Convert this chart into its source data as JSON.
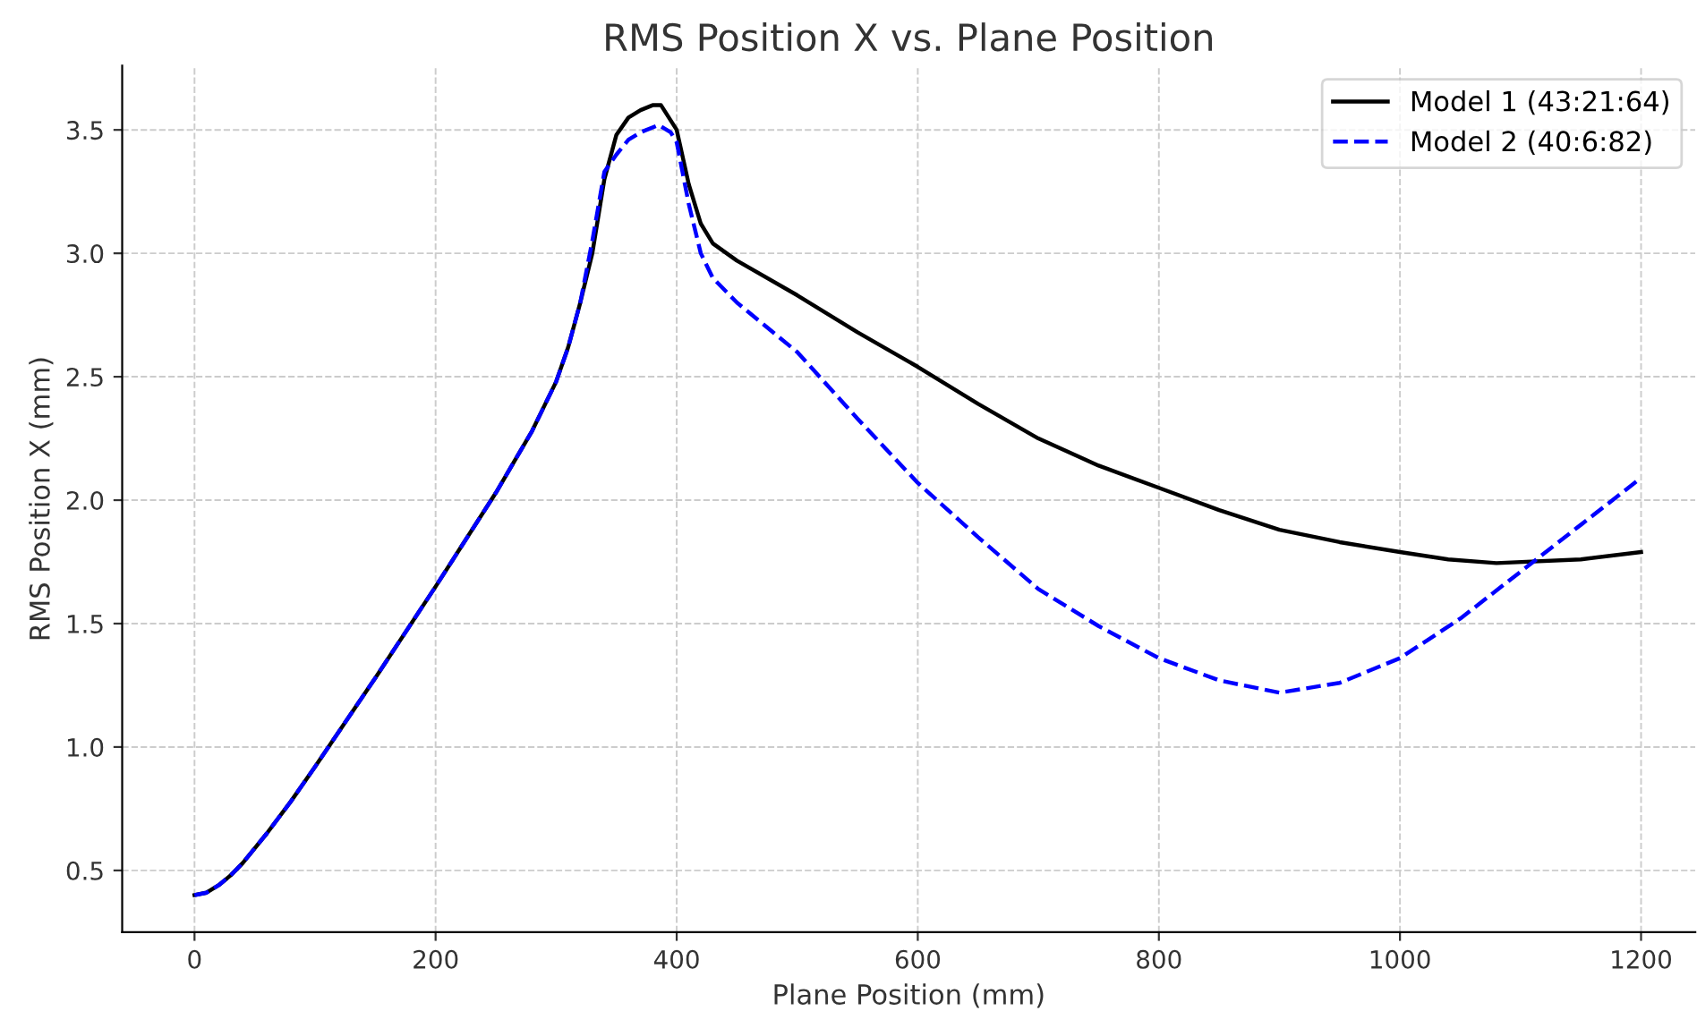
{
  "chart_data": {
    "type": "line",
    "title": "RMS Position X vs. Plane Position",
    "xlabel": "Plane Position (mm)",
    "ylabel": "RMS Position X (mm)",
    "xlim": [
      -60,
      1245
    ],
    "ylim": [
      0.25,
      3.76
    ],
    "xticks": [
      0,
      200,
      400,
      600,
      800,
      1000,
      1200
    ],
    "yticks": [
      0.5,
      {
        "value": 1,
        "label": "1.0"
      },
      1.5,
      {
        "value": 2,
        "label": "2.0"
      },
      2.5,
      {
        "value": 3,
        "label": "3.0"
      },
      3.5
    ],
    "grid": true,
    "legend": "top right",
    "series": [
      {
        "name": "Model 1 (43:21:64)",
        "color": "#000000",
        "line_style": "solid",
        "x": [
          0,
          10,
          20,
          30,
          40,
          60,
          80,
          100,
          150,
          200,
          250,
          280,
          300,
          310,
          320,
          330,
          340,
          350,
          360,
          370,
          380,
          387,
          400,
          410,
          420,
          430,
          450,
          500,
          550,
          600,
          650,
          700,
          750,
          800,
          850,
          900,
          950,
          1000,
          1040,
          1080,
          1150,
          1200
        ],
        "values": [
          0.4,
          0.41,
          0.44,
          0.48,
          0.53,
          0.65,
          0.78,
          0.92,
          1.28,
          1.65,
          2.03,
          2.28,
          2.48,
          2.62,
          2.8,
          3.0,
          3.3,
          3.48,
          3.55,
          3.58,
          3.6,
          3.6,
          3.5,
          3.28,
          3.12,
          3.04,
          2.97,
          2.83,
          2.68,
          2.54,
          2.39,
          2.25,
          2.14,
          2.05,
          1.96,
          1.88,
          1.83,
          1.79,
          1.76,
          1.745,
          1.76,
          1.79
        ]
      },
      {
        "name": "Model 2 (40:6:82)",
        "color": "#0000ff",
        "line_style": "dashed",
        "x": [
          0,
          10,
          20,
          30,
          40,
          60,
          80,
          100,
          150,
          200,
          250,
          280,
          300,
          310,
          320,
          330,
          340,
          350,
          360,
          370,
          385,
          395,
          400,
          410,
          420,
          430,
          450,
          500,
          550,
          600,
          650,
          700,
          750,
          800,
          850,
          900,
          950,
          1000,
          1050,
          1100,
          1150,
          1200
        ],
        "values": [
          0.4,
          0.41,
          0.44,
          0.48,
          0.53,
          0.65,
          0.78,
          0.92,
          1.28,
          1.65,
          2.03,
          2.28,
          2.48,
          2.62,
          2.8,
          3.05,
          3.33,
          3.4,
          3.46,
          3.49,
          3.52,
          3.49,
          3.45,
          3.2,
          3.0,
          2.9,
          2.8,
          2.6,
          2.33,
          2.07,
          1.85,
          1.64,
          1.49,
          1.36,
          1.27,
          1.22,
          1.26,
          1.36,
          1.52,
          1.71,
          1.9,
          2.09
        ]
      }
    ]
  }
}
